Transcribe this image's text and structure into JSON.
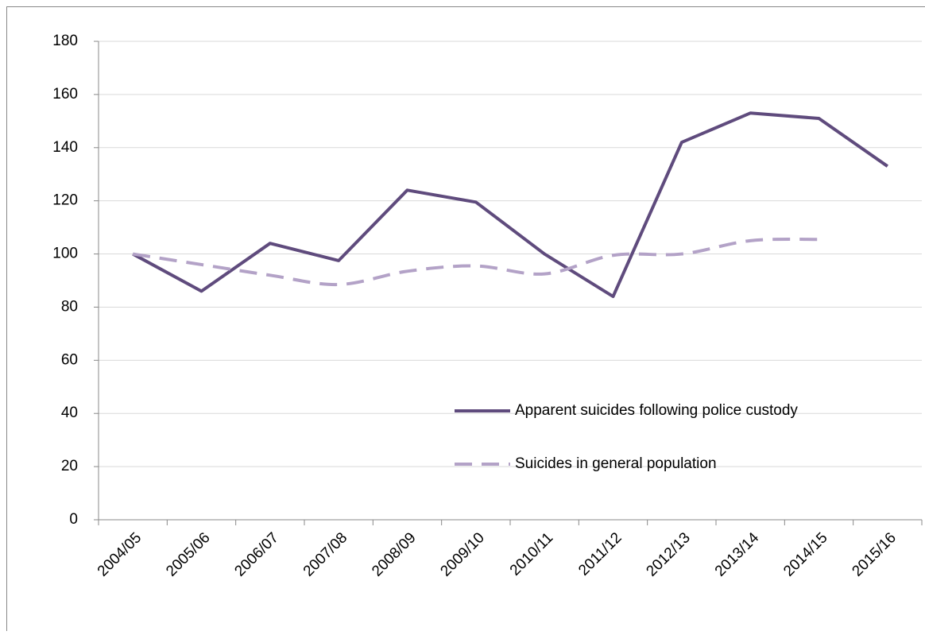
{
  "chart_data": {
    "type": "line",
    "categories": [
      "2004/05",
      "2005/06",
      "2006/07",
      "2007/08",
      "2008/09",
      "2009/10",
      "2010/11",
      "2011/12",
      "2012/13",
      "2013/14",
      "2014/15",
      "2015/16"
    ],
    "series": [
      {
        "name": "Apparent suicides following police custody",
        "color": "#5f4b7d",
        "dashed": false,
        "smooth": false,
        "values": [
          100,
          86,
          104,
          97.5,
          124,
          119.5,
          100,
          84,
          142,
          153,
          151,
          133
        ]
      },
      {
        "name": "Suicides in general population",
        "color": "#b3a2c7",
        "dashed": true,
        "smooth": true,
        "values": [
          100,
          96,
          92,
          88.5,
          93.5,
          95.5,
          92.5,
          99.5,
          100,
          105,
          105.5,
          null
        ]
      }
    ],
    "ylim": [
      0,
      180
    ],
    "yticks": [
      0,
      20,
      40,
      60,
      80,
      100,
      120,
      140,
      160,
      180
    ],
    "grid": true,
    "legend": "lower right"
  }
}
